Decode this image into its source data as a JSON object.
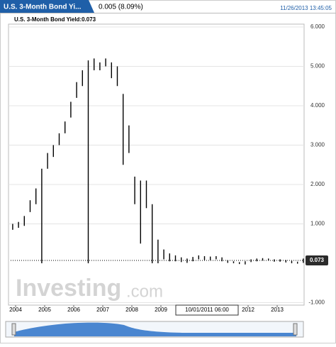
{
  "header": {
    "tab": "U.S. 3-Month Bond Yi...",
    "change": "0.005 (8.09%)",
    "timestamp": "11/26/2013 13:45:05"
  },
  "chart_data": {
    "type": "ohlc",
    "legend": "U.S. 3-Month Bond Yield:0.073",
    "watermark": "Investing",
    "watermark_suffix": ".com",
    "crosshair_label": "10/01/2011 06:00",
    "color": "#000000",
    "x": [
      2003.9,
      2004.1,
      2004.3,
      2004.5,
      2004.7,
      2004.9,
      2005.1,
      2005.3,
      2005.5,
      2005.7,
      2005.9,
      2006.1,
      2006.3,
      2006.5,
      2006.7,
      2006.9,
      2007.1,
      2007.3,
      2007.5,
      2007.7,
      2007.9,
      2008.1,
      2008.3,
      2008.5,
      2008.7,
      2008.9,
      2009.1,
      2009.3,
      2009.5,
      2009.7,
      2009.9,
      2010.1,
      2010.3,
      2010.5,
      2010.7,
      2010.9,
      2011.1,
      2011.3,
      2011.5,
      2011.7,
      2011.9,
      2012.1,
      2012.3,
      2012.5,
      2012.7,
      2012.9,
      2013.1,
      2013.3,
      2013.5,
      2013.7,
      2013.9
    ],
    "high": [
      1.0,
      1.05,
      1.2,
      1.6,
      1.9,
      2.4,
      2.8,
      3.0,
      3.3,
      3.6,
      4.1,
      4.6,
      4.9,
      5.15,
      5.2,
      5.1,
      5.2,
      5.1,
      5.0,
      4.3,
      3.5,
      2.2,
      2.1,
      2.1,
      1.5,
      0.6,
      0.35,
      0.25,
      0.2,
      0.15,
      0.12,
      0.16,
      0.2,
      0.18,
      0.17,
      0.18,
      0.15,
      0.08,
      0.05,
      0.03,
      0.05,
      0.1,
      0.12,
      0.13,
      0.12,
      0.1,
      0.1,
      0.08,
      0.06,
      0.04,
      0.12
    ],
    "low": [
      0.85,
      0.9,
      0.95,
      1.3,
      1.5,
      0.0,
      2.4,
      2.7,
      3.0,
      3.3,
      3.7,
      4.2,
      4.5,
      0.0,
      4.9,
      4.9,
      5.0,
      4.7,
      4.5,
      2.5,
      2.8,
      1.5,
      0.5,
      1.4,
      0.0,
      0.0,
      0.1,
      0.05,
      0.05,
      0.03,
      0.01,
      0.05,
      0.1,
      0.08,
      0.08,
      0.1,
      0.05,
      0.01,
      0.0,
      -0.02,
      -0.03,
      0.03,
      0.05,
      0.07,
      0.07,
      0.04,
      0.04,
      0.02,
      0.0,
      -0.01,
      0.01
    ],
    "last_value": 0.073,
    "xlim": [
      2003.85,
      2013.95
    ],
    "xticks": [
      2004,
      2005,
      2006,
      2007,
      2008,
      2009,
      2012,
      2013
    ],
    "ylim": [
      -1,
      6
    ],
    "yticks": [
      {
        "value": 6,
        "label": "6.000"
      },
      {
        "value": 5,
        "label": "5.000"
      },
      {
        "value": 4,
        "label": "4.000"
      },
      {
        "value": 3,
        "label": "3.000"
      },
      {
        "value": 2,
        "label": "2.000"
      },
      {
        "value": 1,
        "label": "1.000"
      },
      {
        "value": -1,
        "label": "-1.000"
      }
    ],
    "grid": true
  }
}
